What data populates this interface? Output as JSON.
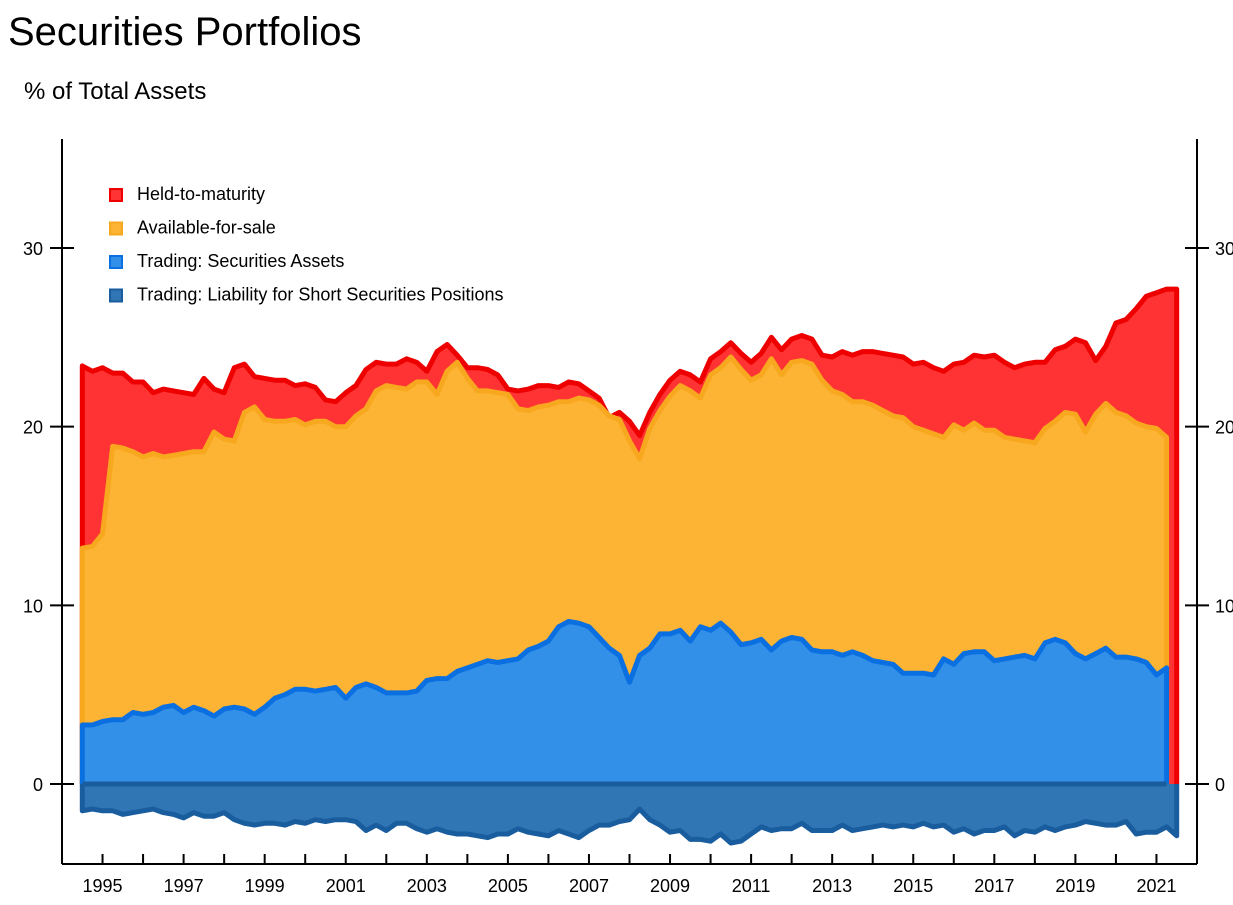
{
  "chart_data": {
    "type": "area",
    "title": "Securities Portfolios",
    "subtitle": "% of Total Assets",
    "xlabel": "",
    "ylabel": "",
    "x_start": 1994.5,
    "x_step": 0.25,
    "xlim": [
      1994,
      2022
    ],
    "ylim": [
      -4.5,
      36
    ],
    "y_ticks": [
      0,
      10,
      20,
      30
    ],
    "x_ticks": [
      1995,
      1997,
      1999,
      2001,
      2003,
      2005,
      2007,
      2009,
      2011,
      2013,
      2015,
      2017,
      2019,
      2021
    ],
    "grid": false,
    "legend_position": "top-left",
    "series": [
      {
        "name": "Trading: Securities Assets",
        "fill": "#3390e8",
        "stroke": "#0a6fe0",
        "values": [
          3.3,
          3.3,
          3.5,
          3.6,
          3.6,
          4.0,
          3.9,
          4.0,
          4.3,
          4.4,
          4.0,
          4.3,
          4.1,
          3.8,
          4.2,
          4.3,
          4.2,
          3.9,
          4.3,
          4.8,
          5.0,
          5.3,
          5.3,
          5.2,
          5.3,
          5.4,
          4.8,
          5.4,
          5.6,
          5.4,
          5.1,
          5.1,
          5.1,
          5.2,
          5.8,
          5.9,
          5.9,
          6.3,
          6.5,
          6.7,
          6.9,
          6.8,
          6.9,
          7.0,
          7.5,
          7.7,
          8.0,
          8.8,
          9.1,
          9.0,
          8.8,
          8.2,
          7.6,
          7.2,
          5.7,
          7.2,
          7.6,
          8.4,
          8.4,
          8.6,
          8.0,
          8.8,
          8.6,
          9.0,
          8.5,
          7.8,
          7.9,
          8.1,
          7.5,
          8.0,
          8.2,
          8.1,
          7.5,
          7.4,
          7.4,
          7.2,
          7.4,
          7.2,
          6.9,
          6.8,
          6.7,
          6.2,
          6.2,
          6.2,
          6.1,
          7.0,
          6.7,
          7.3,
          7.4,
          7.4,
          6.9,
          7.0,
          7.1,
          7.2,
          7.0,
          7.9,
          8.1,
          7.9,
          7.3,
          7.0,
          7.3,
          7.6,
          7.1,
          7.1,
          7.0,
          6.8,
          6.1,
          6.5
        ]
      },
      {
        "name": "Available-for-sale",
        "fill": "#fdb434",
        "stroke": "#f7a81e",
        "values": [
          13.2,
          13.3,
          14.0,
          18.9,
          18.8,
          18.6,
          18.3,
          18.5,
          18.3,
          18.4,
          18.5,
          18.6,
          18.6,
          19.7,
          19.3,
          19.2,
          20.8,
          21.1,
          20.4,
          20.3,
          20.3,
          20.4,
          20.1,
          20.3,
          20.3,
          20.0,
          20.0,
          20.6,
          21.0,
          22.0,
          22.3,
          22.2,
          22.1,
          22.5,
          22.5,
          21.8,
          23.1,
          23.6,
          22.7,
          22.0,
          22.0,
          21.9,
          21.8,
          21.0,
          20.9,
          21.1,
          21.2,
          21.4,
          21.4,
          21.6,
          21.5,
          21.2,
          20.6,
          20.4,
          19.2,
          18.2,
          19.9,
          20.9,
          21.7,
          22.3,
          22.0,
          21.6,
          22.9,
          23.3,
          23.9,
          23.2,
          22.6,
          22.9,
          23.8,
          22.9,
          23.6,
          23.7,
          23.5,
          22.6,
          22.0,
          21.8,
          21.4,
          21.4,
          21.2,
          20.9,
          20.6,
          20.5,
          20.0,
          19.8,
          19.6,
          19.4,
          20.1,
          19.8,
          20.2,
          19.8,
          19.8,
          19.4,
          19.3,
          19.2,
          19.1,
          19.9,
          20.3,
          20.8,
          20.7,
          19.7,
          20.7,
          21.3,
          20.8,
          20.6,
          20.2,
          20.0,
          19.9,
          19.4
        ]
      },
      {
        "name": "Held-to-maturity",
        "fill": "#ff3333",
        "stroke": "#ee0000",
        "values": [
          23.4,
          23.1,
          23.3,
          23.0,
          23.0,
          22.5,
          22.5,
          21.9,
          22.1,
          22.0,
          21.9,
          21.8,
          22.7,
          22.1,
          21.9,
          23.3,
          23.5,
          22.8,
          22.7,
          22.6,
          22.6,
          22.3,
          22.4,
          22.2,
          21.5,
          21.4,
          21.9,
          22.3,
          23.2,
          23.6,
          23.5,
          23.5,
          23.8,
          23.6,
          23.1,
          24.2,
          24.6,
          24.0,
          23.3,
          23.3,
          23.2,
          22.9,
          22.1,
          22.0,
          22.1,
          22.3,
          22.3,
          22.2,
          22.5,
          22.4,
          22.0,
          21.6,
          20.5,
          20.8,
          20.3,
          19.5,
          20.8,
          21.8,
          22.6,
          23.1,
          22.9,
          22.5,
          23.8,
          24.2,
          24.7,
          24.1,
          23.6,
          24.1,
          25.0,
          24.3,
          24.9,
          25.1,
          24.9,
          24.0,
          23.9,
          24.2,
          24.0,
          24.2,
          24.2,
          24.1,
          24.0,
          23.9,
          23.5,
          23.6,
          23.3,
          23.1,
          23.5,
          23.6,
          24.0,
          23.9,
          24.0,
          23.6,
          23.3,
          23.5,
          23.6,
          23.6,
          24.3,
          24.5,
          24.9,
          24.7,
          23.7,
          24.5,
          25.8,
          26.0,
          26.6,
          27.3,
          27.5,
          27.7,
          27.7
        ]
      },
      {
        "name": "Trading: Liability for Short Securities Positions",
        "fill": "#3176b4",
        "stroke": "#1a5d9e",
        "values": [
          -1.5,
          -1.4,
          -1.5,
          -1.5,
          -1.7,
          -1.6,
          -1.5,
          -1.4,
          -1.6,
          -1.7,
          -1.9,
          -1.6,
          -1.8,
          -1.8,
          -1.6,
          -2.0,
          -2.2,
          -2.3,
          -2.2,
          -2.2,
          -2.3,
          -2.1,
          -2.2,
          -2.0,
          -2.1,
          -2.0,
          -2.0,
          -2.1,
          -2.6,
          -2.3,
          -2.6,
          -2.2,
          -2.2,
          -2.5,
          -2.7,
          -2.5,
          -2.7,
          -2.8,
          -2.8,
          -2.9,
          -3.0,
          -2.8,
          -2.8,
          -2.5,
          -2.7,
          -2.8,
          -2.9,
          -2.6,
          -2.8,
          -3.0,
          -2.6,
          -2.3,
          -2.3,
          -2.1,
          -2.0,
          -1.4,
          -2.0,
          -2.3,
          -2.7,
          -2.6,
          -3.1,
          -3.1,
          -3.2,
          -2.8,
          -3.3,
          -3.2,
          -2.8,
          -2.4,
          -2.6,
          -2.5,
          -2.5,
          -2.2,
          -2.6,
          -2.6,
          -2.6,
          -2.3,
          -2.6,
          -2.5,
          -2.4,
          -2.3,
          -2.4,
          -2.3,
          -2.4,
          -2.2,
          -2.4,
          -2.3,
          -2.7,
          -2.5,
          -2.8,
          -2.6,
          -2.6,
          -2.4,
          -2.9,
          -2.6,
          -2.7,
          -2.4,
          -2.6,
          -2.4,
          -2.3,
          -2.1,
          -2.2,
          -2.3,
          -2.3,
          -2.1,
          -2.8,
          -2.7,
          -2.7,
          -2.4,
          -2.9
        ]
      }
    ]
  }
}
